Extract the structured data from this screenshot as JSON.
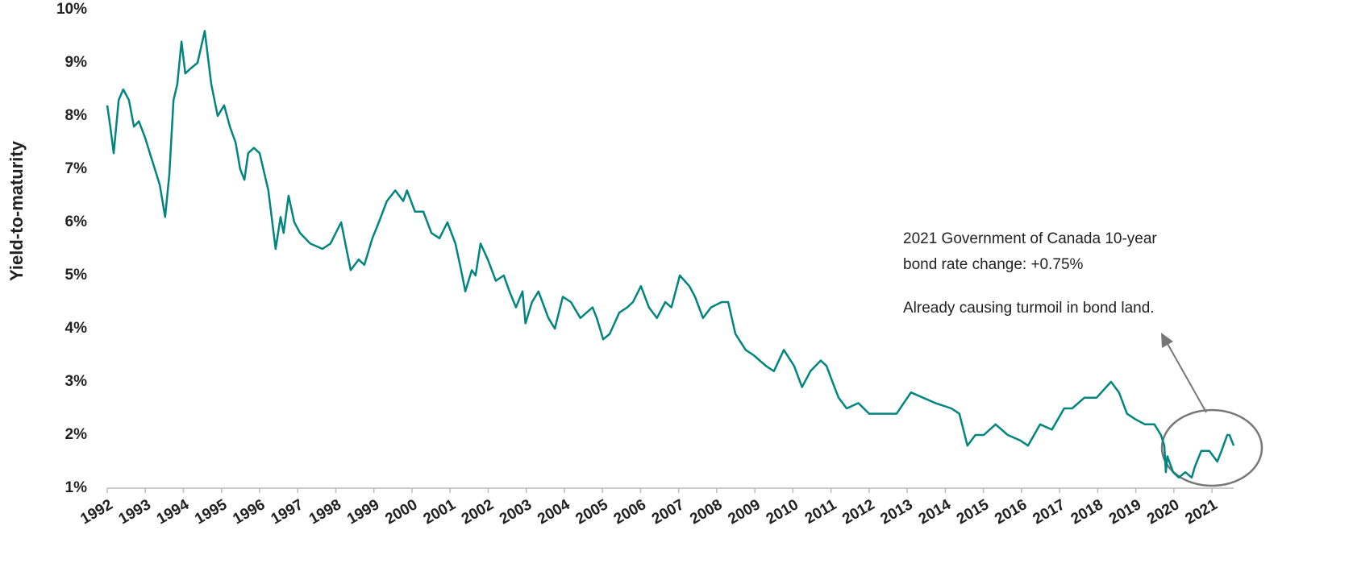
{
  "chart_data": {
    "type": "line",
    "y_label": "Yield-to-maturity",
    "annotations": [
      "2021 Government of Canada 10-year",
      "bond rate change: +0.75%",
      "Already causing turmoil in bond land."
    ],
    "color": "#00857f",
    "xlim": [
      1992,
      2021.57
    ],
    "xticks": [
      1992,
      1993,
      1994,
      1995,
      1996,
      1997,
      1998,
      1999,
      2000,
      2001,
      2002,
      2003,
      2004,
      2005,
      2006,
      2007,
      2008,
      2009,
      2010,
      2011,
      2012,
      2013,
      2014,
      2015,
      2016,
      2017,
      2018,
      2019,
      2020,
      2021
    ],
    "ylim": [
      1,
      10
    ],
    "yticks": [
      {
        "value": 1,
        "label": "1%"
      },
      {
        "value": 2,
        "label": "2%"
      },
      {
        "value": 3,
        "label": "3%"
      },
      {
        "value": 4,
        "label": "4%"
      },
      {
        "value": 5,
        "label": "5%"
      },
      {
        "value": 6,
        "label": "6%"
      },
      {
        "value": 7,
        "label": "7%"
      },
      {
        "value": 8,
        "label": "8%"
      },
      {
        "value": 9,
        "label": "9%"
      },
      {
        "value": 10,
        "label": "10%"
      }
    ],
    "x": [
      1992.0,
      1992.08,
      1992.17,
      1992.3,
      1992.42,
      1992.57,
      1992.7,
      1992.83,
      1992.99,
      1993.12,
      1993.25,
      1993.38,
      1993.52,
      1993.63,
      1993.74,
      1993.84,
      1993.95,
      1994.05,
      1994.2,
      1994.37,
      1994.56,
      1994.73,
      1994.9,
      1995.07,
      1995.22,
      1995.37,
      1995.49,
      1995.6,
      1995.7,
      1995.85,
      1996.0,
      1996.23,
      1996.42,
      1996.55,
      1996.63,
      1996.76,
      1996.91,
      1997.06,
      1997.33,
      1997.65,
      1997.86,
      1998.14,
      1998.39,
      1998.6,
      1998.75,
      1998.96,
      1999.13,
      1999.34,
      1999.56,
      1999.77,
      1999.87,
      2000.08,
      2000.3,
      2000.51,
      2000.72,
      2000.93,
      2001.14,
      2001.29,
      2001.4,
      2001.57,
      2001.67,
      2001.8,
      2001.99,
      2002.2,
      2002.41,
      2002.56,
      2002.73,
      2002.9,
      2002.98,
      2003.15,
      2003.32,
      2003.58,
      2003.75,
      2003.96,
      2004.17,
      2004.42,
      2004.74,
      2004.85,
      2005.02,
      2005.19,
      2005.44,
      2005.65,
      2005.8,
      2006.01,
      2006.22,
      2006.43,
      2006.65,
      2006.81,
      2007.03,
      2007.28,
      2007.43,
      2007.64,
      2007.85,
      2008.13,
      2008.3,
      2008.49,
      2008.76,
      2008.97,
      2009.29,
      2009.5,
      2009.76,
      2010.03,
      2010.24,
      2010.46,
      2010.73,
      2010.88,
      2011.09,
      2011.2,
      2011.41,
      2011.72,
      2012.0,
      2012.36,
      2012.72,
      2013.1,
      2013.42,
      2013.74,
      2014.16,
      2014.37,
      2014.58,
      2014.79,
      2015.01,
      2015.32,
      2015.64,
      2015.96,
      2016.17,
      2016.49,
      2016.8,
      2017.12,
      2017.33,
      2017.65,
      2017.97,
      2018.35,
      2018.56,
      2018.77,
      2018.98,
      2019.24,
      2019.49,
      2019.66,
      2019.75,
      2019.79,
      2019.83,
      2019.98,
      2020.13,
      2020.3,
      2020.47,
      2020.55,
      2020.72,
      2020.93,
      2021.14,
      2021.25,
      2021.4,
      2021.46,
      2021.57
    ],
    "values": [
      8.2,
      7.8,
      7.3,
      8.3,
      8.5,
      8.3,
      7.8,
      7.9,
      7.6,
      7.3,
      7.0,
      6.7,
      6.1,
      6.9,
      8.3,
      8.6,
      9.4,
      8.8,
      8.9,
      9.0,
      9.6,
      8.6,
      8.0,
      8.2,
      7.8,
      7.5,
      7.0,
      6.8,
      7.3,
      7.4,
      7.3,
      6.6,
      5.5,
      6.1,
      5.8,
      6.5,
      6.0,
      5.8,
      5.6,
      5.5,
      5.6,
      6.0,
      5.1,
      5.3,
      5.2,
      5.7,
      6.0,
      6.4,
      6.6,
      6.4,
      6.6,
      6.2,
      6.2,
      5.8,
      5.7,
      6.0,
      5.6,
      5.1,
      4.7,
      5.1,
      5.0,
      5.6,
      5.3,
      4.9,
      5.0,
      4.7,
      4.4,
      4.7,
      4.1,
      4.5,
      4.7,
      4.2,
      4.0,
      4.6,
      4.5,
      4.2,
      4.4,
      4.2,
      3.8,
      3.9,
      4.3,
      4.4,
      4.5,
      4.8,
      4.4,
      4.2,
      4.5,
      4.4,
      5.0,
      4.8,
      4.6,
      4.2,
      4.4,
      4.5,
      4.5,
      3.9,
      3.6,
      3.5,
      3.3,
      3.2,
      3.6,
      3.3,
      2.9,
      3.2,
      3.4,
      3.3,
      2.9,
      2.7,
      2.5,
      2.6,
      2.4,
      2.4,
      2.4,
      2.8,
      2.7,
      2.6,
      2.5,
      2.4,
      1.8,
      2.0,
      2.0,
      2.2,
      2.0,
      1.9,
      1.8,
      2.2,
      2.1,
      2.5,
      2.5,
      2.7,
      2.7,
      3.0,
      2.8,
      2.4,
      2.3,
      2.2,
      2.2,
      2.0,
      1.8,
      1.3,
      1.6,
      1.3,
      1.2,
      1.3,
      1.2,
      1.4,
      1.7,
      1.7,
      1.5,
      1.7,
      2.0,
      2.0,
      1.8
    ]
  }
}
